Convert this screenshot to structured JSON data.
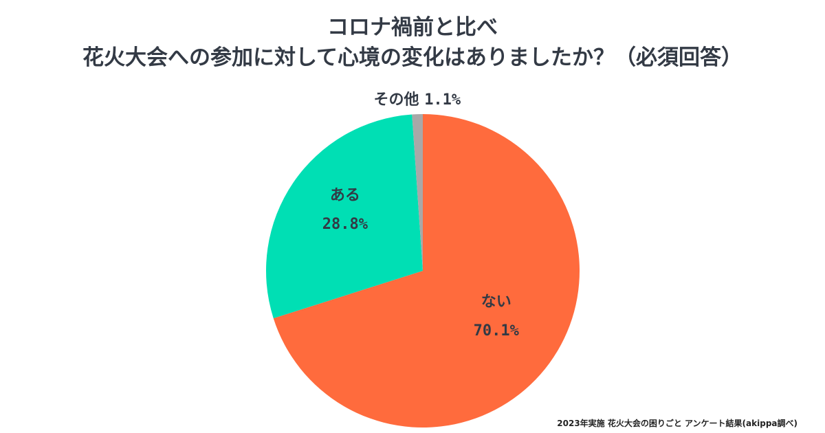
{
  "chart_data": {
    "type": "pie",
    "title_lines": [
      "コロナ禍前と比べ",
      "花火大会への参加に対して心境の変化はありましたか？（必須回答）"
    ],
    "start_angle_deg": 0,
    "direction": "clockwise",
    "slices": [
      {
        "label": "ない",
        "value": 70.1,
        "value_text": "70.1%",
        "color": "#ff6b3d"
      },
      {
        "label": "ある",
        "value": 28.8,
        "value_text": "28.8%",
        "color": "#00dfb4"
      },
      {
        "label": "その他",
        "value": 1.1,
        "value_text": "1.1%",
        "color": "#a8a8a8"
      }
    ],
    "legend": "none"
  },
  "footer": {
    "source": "2023年実施 花火大会の困りごと アンケート結果(akippa調べ)"
  }
}
